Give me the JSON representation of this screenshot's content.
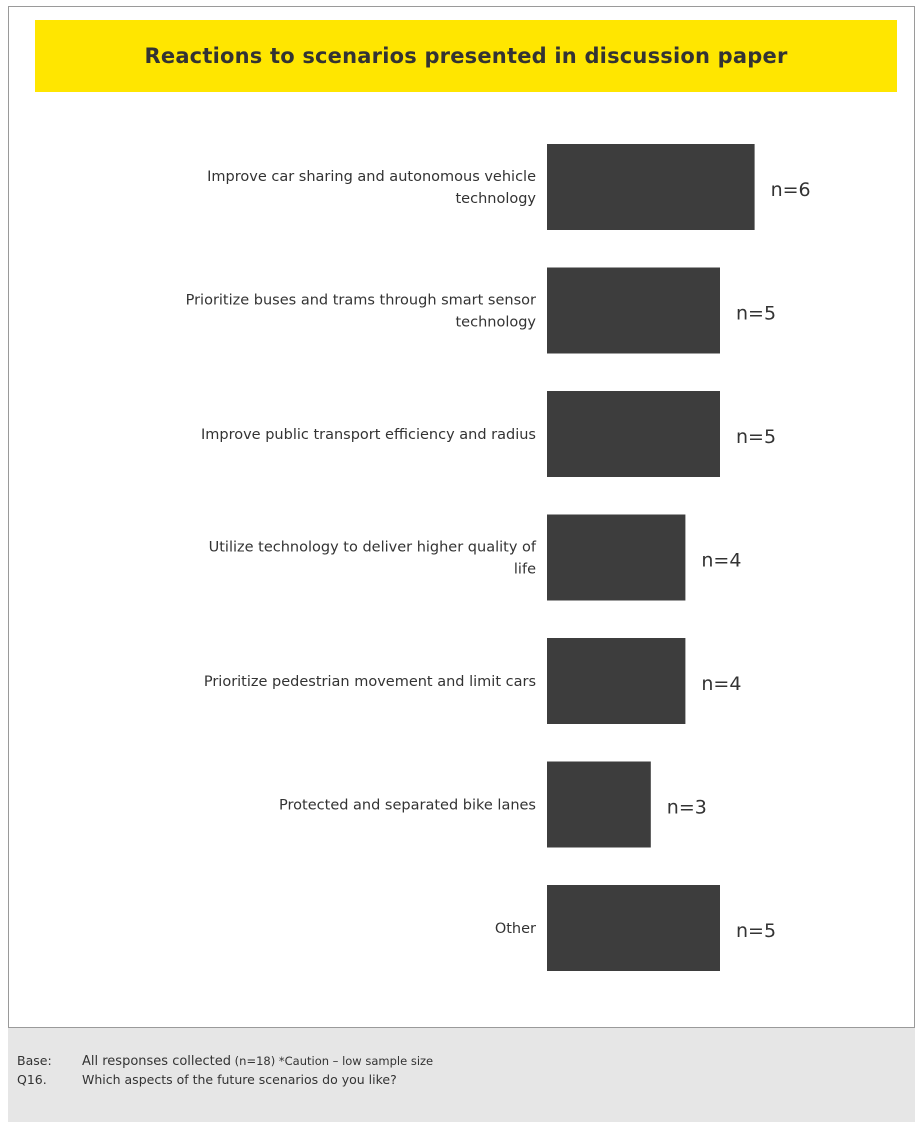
{
  "chart_data": {
    "type": "bar",
    "orientation": "horizontal",
    "title": "Reactions to scenarios presented in discussion paper",
    "categories": [
      "Improve car sharing and autonomous vehicle technology",
      "Prioritize buses and trams through smart sensor technology",
      "Improve public transport efficiency and radius",
      "Utilize technology to deliver higher quality of life",
      "Prioritize pedestrian movement and limit cars",
      "Protected and separated bike lanes",
      "Other"
    ],
    "values": [
      6,
      5,
      5,
      4,
      4,
      3,
      5
    ],
    "value_labels": [
      "n=6",
      "n=5",
      "n=5",
      "n=4",
      "n=4",
      "n=3",
      "n=5"
    ],
    "xlim": [
      0,
      6
    ],
    "grid": false,
    "legend": "none",
    "colors": {
      "bar": "#3d3d3d",
      "banner": "#ffe600",
      "text": "#333333"
    }
  },
  "footer": {
    "base_key": "Base:",
    "base_main": "All responses collected",
    "base_detail": " (n=18) *Caution – low sample size",
    "question_key": "Q16.",
    "question_text": "Which aspects of the future scenarios do you like?"
  }
}
